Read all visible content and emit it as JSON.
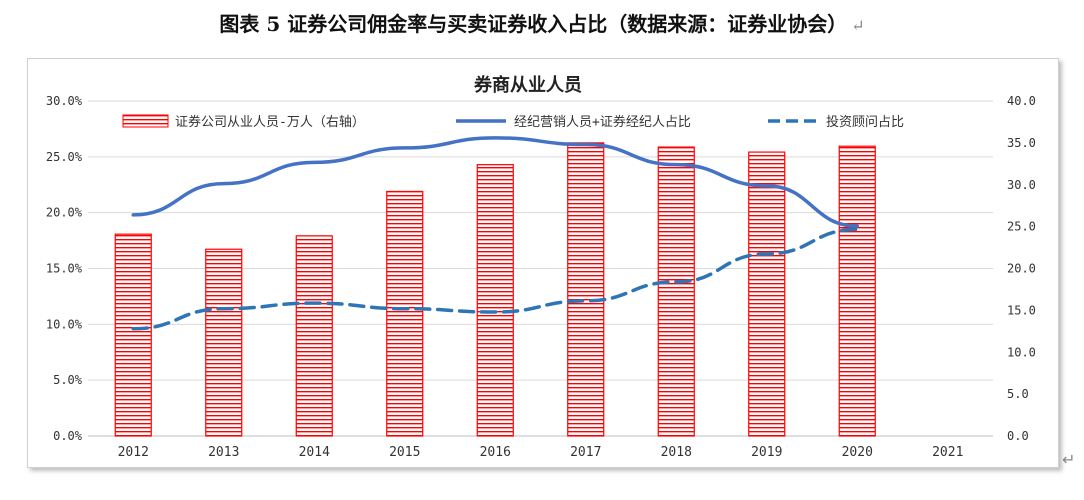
{
  "caption": "图表 5 证券公司佣金率与买卖证券收入占比（数据来源：证券业协会）",
  "paragraph_mark": "↵",
  "chart_data": {
    "type": "bar",
    "title": "券商从业人员",
    "categories": [
      "2012",
      "2013",
      "2014",
      "2015",
      "2016",
      "2017",
      "2018",
      "2019",
      "2020",
      "2021"
    ],
    "y_left": {
      "ylim": [
        0,
        30
      ],
      "ticks": [
        "0.0%",
        "5.0%",
        "10.0%",
        "15.0%",
        "20.0%",
        "25.0%",
        "30.0%"
      ]
    },
    "y_right": {
      "ylim": [
        0,
        40
      ],
      "ticks": [
        "0.0",
        "5.0",
        "10.0",
        "15.0",
        "20.0",
        "25.0",
        "30.0",
        "35.0",
        "40.0"
      ]
    },
    "legend_position": "top",
    "series": [
      {
        "name": "证券公司从业人员-万人（右轴）",
        "kind": "bar",
        "axis": "right",
        "color": "#ff0000",
        "values": [
          24.1,
          22.3,
          23.9,
          29.2,
          32.4,
          35.0,
          34.5,
          33.9,
          34.6,
          null
        ]
      },
      {
        "name": "经纪营销人员+证券经纪人占比",
        "kind": "line",
        "axis": "left",
        "color": "#4472c4",
        "values": [
          19.8,
          22.6,
          24.5,
          25.8,
          26.7,
          26.1,
          24.3,
          22.4,
          18.8,
          null
        ]
      },
      {
        "name": "投资顾问占比",
        "kind": "dashed-line",
        "axis": "left",
        "color": "#2e75b6",
        "values": [
          9.6,
          11.4,
          11.9,
          11.4,
          11.1,
          12.1,
          13.8,
          16.3,
          18.5,
          null
        ]
      }
    ]
  }
}
